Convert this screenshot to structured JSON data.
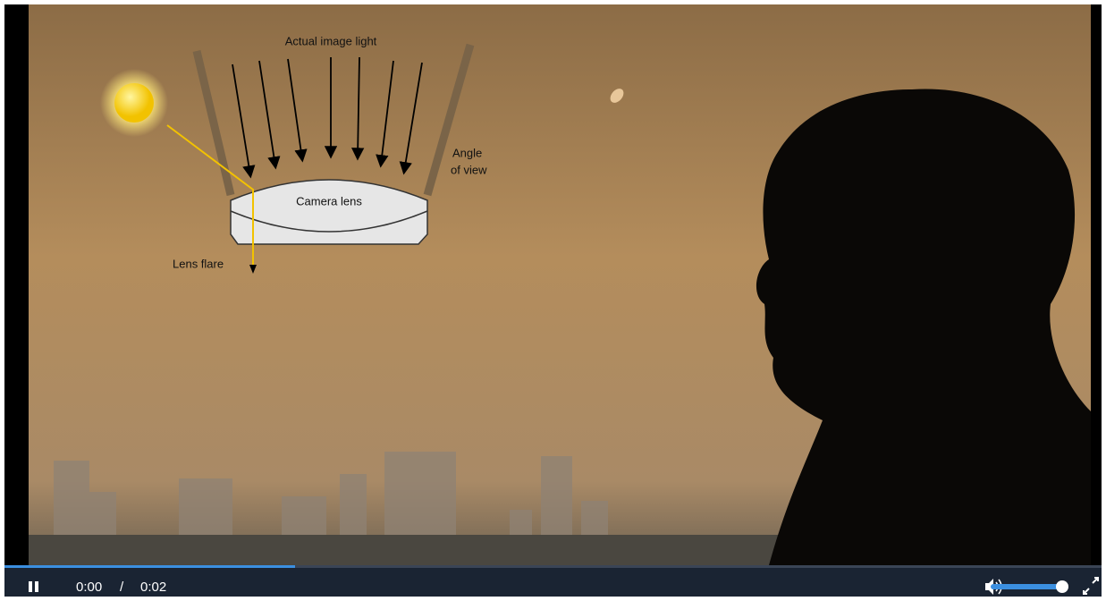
{
  "diagram": {
    "light_label": "Actual image light",
    "angle_label": [
      "Angle",
      "of view"
    ],
    "lens_label": "Camera lens",
    "flare_label": "Lens flare"
  },
  "player": {
    "current_time": "0:00",
    "separator": "/",
    "duration": "0:02"
  }
}
